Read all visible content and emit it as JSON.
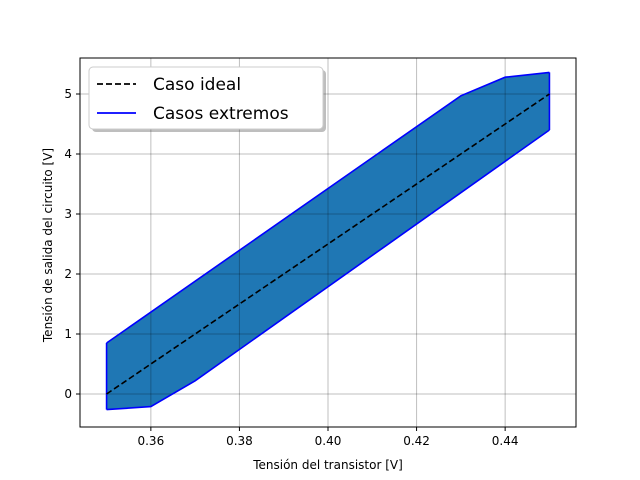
{
  "chart_data": {
    "type": "line",
    "xlabel": "Tensión del transistor [V]",
    "ylabel": "Tensión de salida del circuito [V]",
    "xlim": [
      0.344,
      0.456
    ],
    "ylim": [
      -0.55,
      5.6
    ],
    "xticks": [
      0.36,
      0.38,
      0.4,
      0.42,
      0.44
    ],
    "xtick_labels": [
      "0.36",
      "0.38",
      "0.40",
      "0.42",
      "0.44"
    ],
    "yticks": [
      0,
      1,
      2,
      3,
      4,
      5
    ],
    "ytick_labels": [
      "0",
      "1",
      "2",
      "3",
      "4",
      "5"
    ],
    "grid": true,
    "legend_position": "top-left",
    "series": [
      {
        "name": "Caso ideal",
        "style": "dashed",
        "color": "#000000",
        "x": [
          0.35,
          0.45
        ],
        "y": [
          0.0,
          5.0
        ]
      },
      {
        "name": "Casos extremos",
        "style": "solid",
        "color": "#0000ff",
        "upper": {
          "x": [
            0.35,
            0.43,
            0.44,
            0.45
          ],
          "y": [
            0.85,
            4.97,
            5.28,
            5.36
          ]
        },
        "lower": {
          "x": [
            0.35,
            0.36,
            0.37,
            0.45
          ],
          "y": [
            -0.26,
            -0.21,
            0.22,
            4.4
          ]
        }
      }
    ],
    "fill_color": "#1f77b4"
  }
}
